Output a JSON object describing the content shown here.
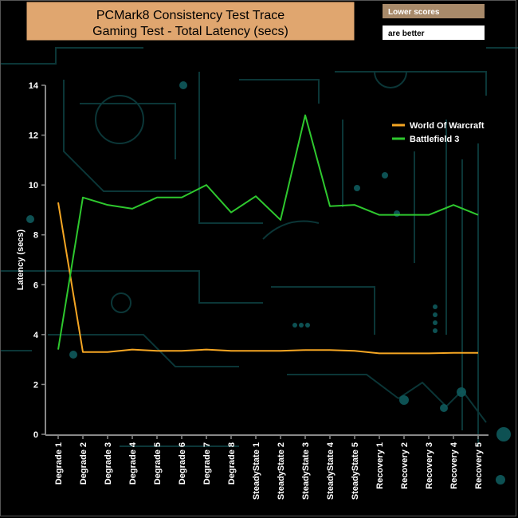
{
  "chart_data": {
    "type": "line",
    "title": "PCMark8 Consistency Test Trace",
    "subtitle": "Gaming Test -  Total Latency (secs)",
    "ylabel": "Latency (secs)",
    "xlabel": "",
    "ylim": [
      0,
      14
    ],
    "yticks": [
      "0",
      "2",
      "4",
      "6",
      "8",
      "10",
      "12",
      "14"
    ],
    "categories": [
      "Degrade 1",
      "Degrade 2",
      "Degrade 3",
      "Degrade 4",
      "Degrade 5",
      "Degrade 6",
      "Degrade 7",
      "Degrade 8",
      "SteadyState 1",
      "SteadyState 2",
      "SteadyState 3",
      "SteadyState 4",
      "SteadyState 5",
      "Recovery 1",
      "Recovery 2",
      "Recovery 3",
      "Recovery 4",
      "Recovery 5"
    ],
    "series": [
      {
        "name": "World Of Warcraft",
        "color": "#f5a623",
        "values": [
          9.3,
          3.3,
          3.3,
          3.4,
          3.35,
          3.35,
          3.4,
          3.35,
          3.35,
          3.35,
          3.38,
          3.38,
          3.35,
          3.25,
          3.25,
          3.25,
          3.27,
          3.27
        ]
      },
      {
        "name": "Battlefield 3",
        "color": "#2ec82e",
        "values": [
          3.4,
          9.5,
          9.2,
          9.05,
          9.5,
          9.5,
          10.0,
          8.9,
          9.55,
          8.6,
          12.8,
          9.15,
          9.2,
          8.8,
          8.8,
          8.8,
          9.2,
          8.8
        ]
      }
    ],
    "legend_position": "top-right",
    "grid": false,
    "note": {
      "line1": "Lower scores",
      "line2": "are better",
      "line1_bg": "#a88a6a",
      "line2_bg": "#ffffff"
    },
    "title_bg": "#e0a66f"
  }
}
